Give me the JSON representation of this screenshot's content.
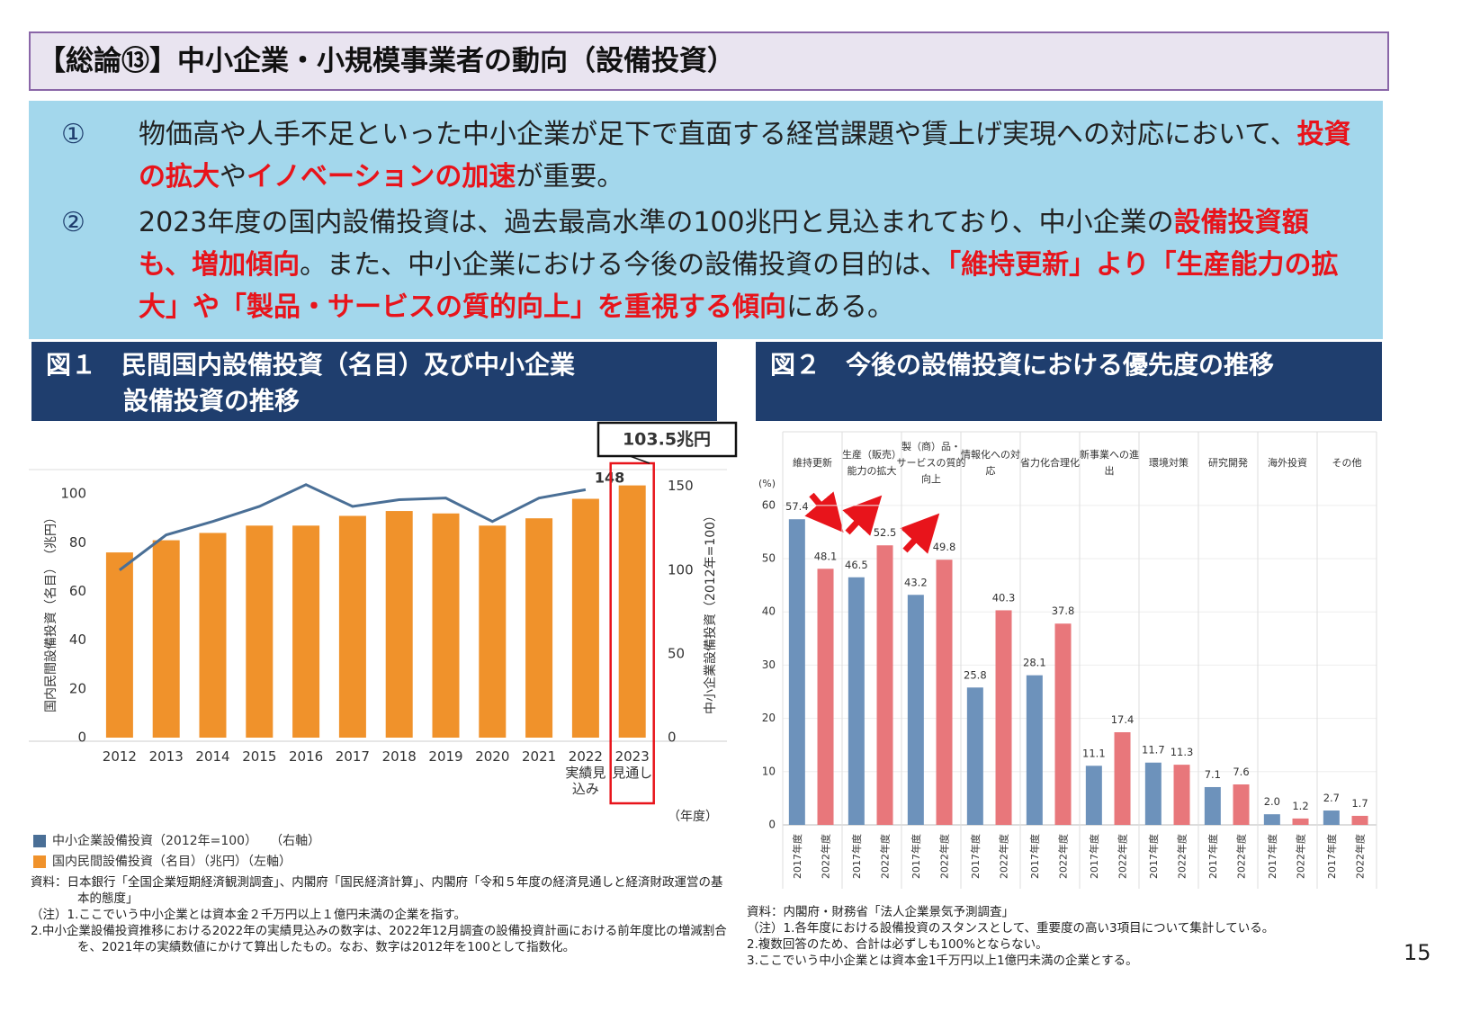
{
  "header": {
    "title": "【総論⑬】中小企業・小規模事業者の動向（設備投資）"
  },
  "summary": {
    "items": [
      {
        "marker": "①",
        "runs": [
          {
            "text": "物価高や人手不足といった中小企業が足下で直面する経営課題や賃上げ実現への対応において、"
          },
          {
            "text": "投資の拡大",
            "highlight": true
          },
          {
            "text": "や"
          },
          {
            "text": "イノベーションの加速",
            "highlight": true
          },
          {
            "text": "が重要。"
          }
        ]
      },
      {
        "marker": "②",
        "runs": [
          {
            "text": "2023年度の国内設備投資は、過去最高水準の100兆円と見込まれており、中小企業の"
          },
          {
            "text": "設備投資額も、増加傾向",
            "highlight": true
          },
          {
            "text": "。また、中小企業における今後の設備投資の目的は、"
          },
          {
            "text": "「維持更新」より「生産能力の拡大」や「製品・サービスの質的向上」を重視する傾向",
            "highlight": true
          },
          {
            "text": "にある。"
          }
        ]
      }
    ]
  },
  "chart_data": [
    {
      "type": "combo",
      "title": "図１　民間国内設備投資（名目）及び中小企業\n設備投資の推移",
      "categories": [
        "2012",
        "2013",
        "2014",
        "2015",
        "2016",
        "2017",
        "2018",
        "2019",
        "2020",
        "2021",
        "2022\n実績見\n込み",
        "2023\n見通し"
      ],
      "series": [
        {
          "name": "中小企業設備投資（2012年=100）　　（右軸）",
          "color": "#4a6f96",
          "axis": "y2",
          "values": [
            100,
            121,
            129,
            138,
            151,
            138,
            142,
            143,
            129,
            143,
            148,
            null
          ]
        },
        {
          "name": "国内民間設備投資（名目）（兆円）（左軸）",
          "color": "#f0922b",
          "values": [
            76,
            81,
            84,
            87,
            87,
            91,
            93,
            92,
            87,
            90,
            98,
            103.5
          ]
        }
      ],
      "ylim": [
        0,
        110
      ],
      "yticks": [
        0,
        20,
        40,
        60,
        80,
        100
      ],
      "y2lim": [
        0,
        160
      ],
      "y2ticks": [
        0,
        50,
        100,
        150
      ],
      "ylabel": "国内民間設備投資（名目）　（兆円）",
      "y2label": "中小企業設備投資（2012年=100）",
      "xlabel": "（年度）",
      "data_labels": "last",
      "highlight": "last",
      "annotation": "103.5兆円",
      "source": "資料：日本銀行「全国企業短期経済観測調査」、内閣府「国民経済計算」、内閣府「令和５年度の経済見通しと経済財政運営の基本的態度」",
      "notes": [
        "（注）1.ここでいう中小企業とは資本金２千万円以上１億円未満の企業を指す。",
        "2.中小企業設備投資推移における2022年の実績見込みの数字は、2022年12月調査の設備投資計画における前年度比の増減割合を、2021年の実績数値にかけて算出したもの。なお、数字は2012年を100として指数化。"
      ]
    },
    {
      "type": "grouped_bar",
      "title": "図２　今後の設備投資における優先度の推移",
      "categories": [
        "維持更新",
        "生産（販売）\n能力の拡大",
        "製（商）品・\nサービスの質的\n向上",
        "情報化への対\n応",
        "省力化合理化",
        "新事業への進\n出",
        "環境対策",
        "研究開発",
        "海外投資",
        "その他"
      ],
      "series": [
        {
          "name": "2017年度",
          "color": "#6d92bb",
          "values": [
            57.4,
            46.5,
            43.2,
            25.8,
            28.1,
            11.1,
            11.7,
            7.1,
            2.0,
            2.7
          ],
          "value_labels": [
            "57.4",
            "46.5",
            "43.2",
            "25.8",
            "28.1",
            "11.1",
            "11.7",
            "7.1",
            "2.0",
            "2.7"
          ]
        },
        {
          "name": "2022年度",
          "color": "#e8777b",
          "values": [
            48.1,
            52.5,
            49.8,
            40.3,
            37.8,
            17.4,
            11.3,
            7.6,
            1.2,
            1.7
          ]
        }
      ],
      "ylim": [
        0,
        62
      ],
      "yticks": [
        0,
        10,
        20,
        30,
        40,
        50,
        60
      ],
      "yunit": "(%)",
      "grid": true,
      "source": "資料：内閣府・財務省「法人企業景気予測調査」",
      "notes": [
        "（注）1.各年度における設備投資のスタンスとして、重要度の高い3項目について集計している。",
        "2.複数回答のため、合計は必ずしも100%とならない。",
        "3.ここでいう中小企業とは資本金1千万円以上1億円未満の企業とする。"
      ]
    }
  ],
  "page_number": "15"
}
